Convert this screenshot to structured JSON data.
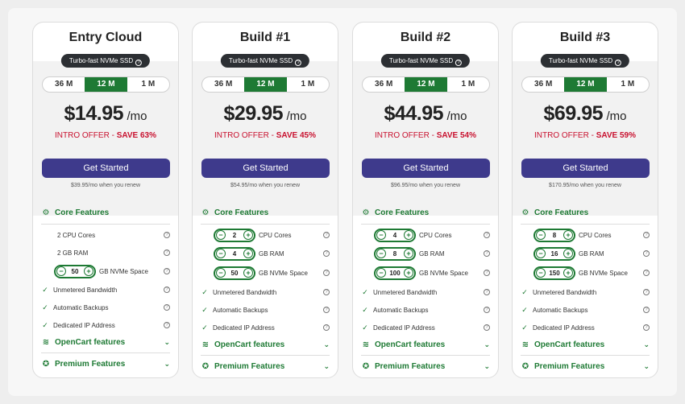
{
  "ssd_label": "Turbo-fast NVMe SSD",
  "terms": [
    "36 M",
    "12 M",
    "1 M"
  ],
  "active_term": "12 M",
  "offer_prefix": "INTRO OFFER - ",
  "cta_label": "Get Started",
  "core_features_label": "Core Features",
  "opencart_label": "OpenCart features",
  "premium_label": "Premium Features",
  "labels": {
    "cpu": "CPU Cores",
    "ram": "GB RAM",
    "nvme": "GB NVMe Space",
    "bandwidth": "Unmetered Bandwidth",
    "backups": "Automatic Backups",
    "ip": "Dedicated IP Address"
  },
  "plans": [
    {
      "name": "Entry Cloud",
      "price": "$14.95",
      "per": "/mo",
      "save": "SAVE 63%",
      "renew": "$39.95/mo when you renew",
      "cpu_fixed": "2 CPU Cores",
      "ram_fixed": "2 GB RAM",
      "nvme": "50"
    },
    {
      "name": "Build #1",
      "price": "$29.95",
      "per": "/mo",
      "save": "SAVE 45%",
      "renew": "$54.95/mo when you renew",
      "cpu": "2",
      "ram": "4",
      "nvme": "50"
    },
    {
      "name": "Build #2",
      "price": "$44.95",
      "per": "/mo",
      "save": "SAVE 54%",
      "renew": "$96.95/mo when you renew",
      "cpu": "4",
      "ram": "8",
      "nvme": "100"
    },
    {
      "name": "Build #3",
      "price": "$69.95",
      "per": "/mo",
      "save": "SAVE 59%",
      "renew": "$170.95/mo when you renew",
      "cpu": "8",
      "ram": "16",
      "nvme": "150"
    }
  ],
  "colors": {
    "accent_green": "#1e7a34",
    "button_purple": "#3e3a8c",
    "offer_red": "#c8102e",
    "badge_dark": "#2c2f33"
  },
  "icons": {
    "core": "chip-icon",
    "opencart": "wifi-icon",
    "premium": "award-icon",
    "check": "check-icon",
    "help": "question-circle-icon",
    "chevron": "chevron-down-icon"
  }
}
